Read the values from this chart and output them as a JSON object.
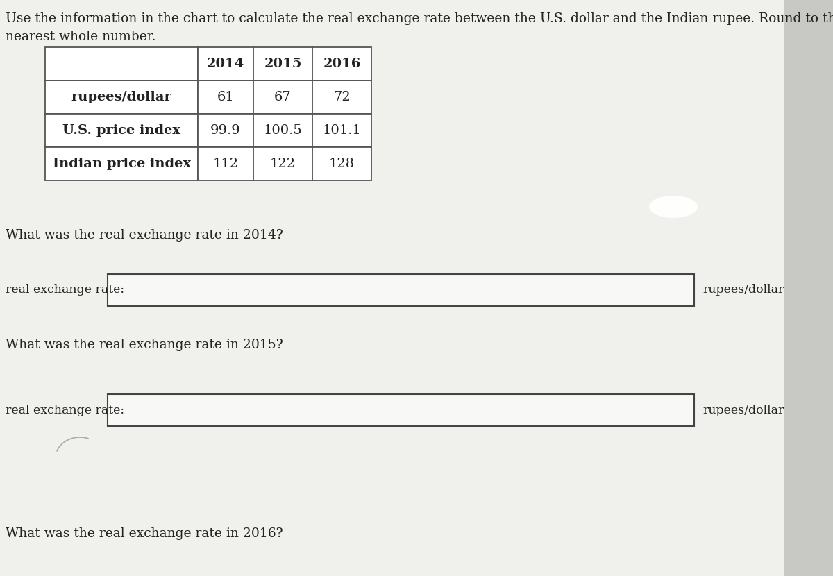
{
  "title_line1": "Use the information in the chart to calculate the real exchange rate between the U.S. dollar and the Indian rupee. Round to the",
  "title_line2": "nearest whole number.",
  "col_headers": [
    "",
    "2014",
    "2015",
    "2016"
  ],
  "rows": [
    [
      "rupees/dollar",
      "61",
      "67",
      "72"
    ],
    [
      "U.S. price index",
      "99.9",
      "100.5",
      "101.1"
    ],
    [
      "Indian price index",
      "112",
      "122",
      "128"
    ]
  ],
  "questions": [
    "What was the real exchange rate in 2014?",
    "What was the real exchange rate in 2015?",
    "What was the real exchange rate in 2016?"
  ],
  "bg_color": "#e8e8e4",
  "white_panel_color": "#f0f0ec",
  "table_bg": "#ffffff",
  "border_color": "#555555",
  "text_color": "#222222",
  "input_box_color": "#f8f8f6",
  "oval_color": "#ffffff",
  "font_size_title": 13.5,
  "font_size_table_header": 14,
  "font_size_table_data": 14,
  "font_size_question": 13.5,
  "font_size_label": 12.5
}
